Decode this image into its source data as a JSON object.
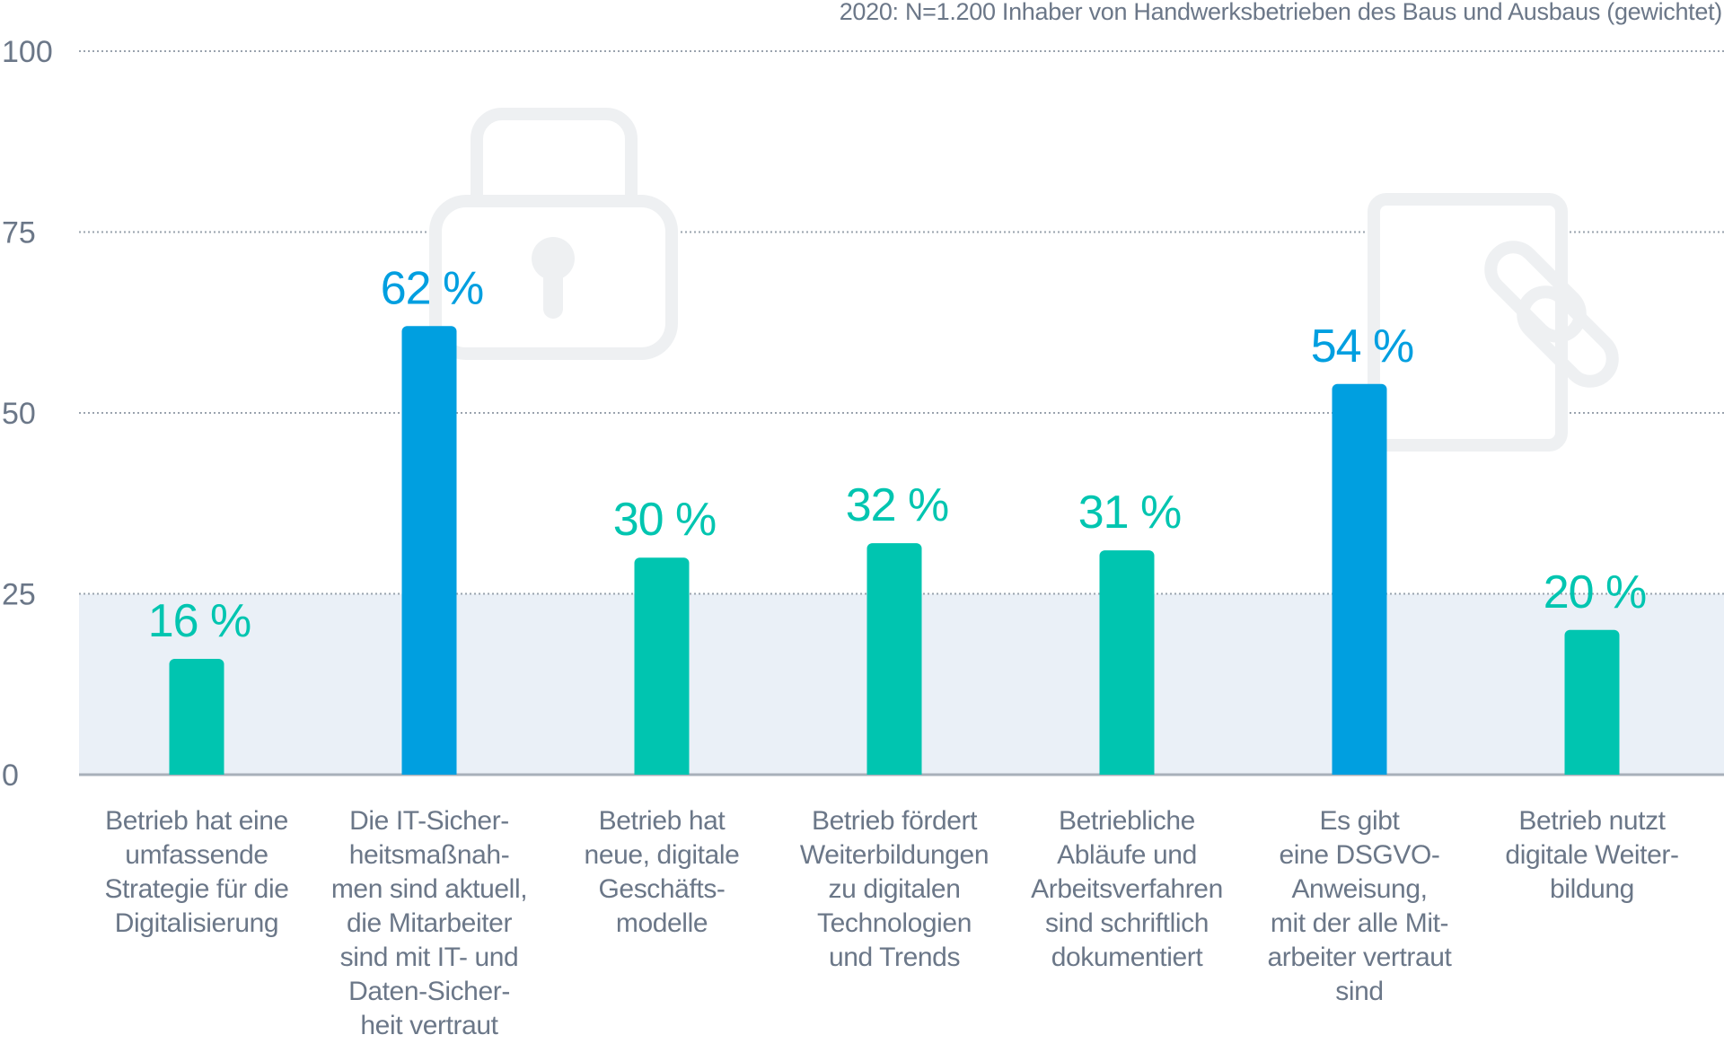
{
  "caption": "2020: N=1.200 Inhaber von Handwerksbetrieben des Baus und Ausbaus (gewichtet)",
  "colors": {
    "teal": "#00c5b0",
    "blue": "#009fe0",
    "band": "#eaf0f7",
    "text": "#6b7788",
    "icon": "#eef0f2"
  },
  "icons": [
    "lock-icon",
    "smartphone-link-icon"
  ],
  "chart_data": {
    "type": "bar",
    "ylim": [
      0,
      100
    ],
    "yticks": [
      0,
      25,
      50,
      75,
      100
    ],
    "grid": true,
    "shaded_band": [
      0,
      25
    ],
    "categories": [
      "Betrieb hat eine umfassende Strategie für die Digitalisierung",
      "Die IT-Sicher-heitsmaßnah-men sind aktuell, die Mitarbeiter sind mit IT- und Daten-Sicher-heit vertraut",
      "Betrieb hat neue, digitale Geschäfts-modelle",
      "Betrieb fördert Weiterbildungen zu digitalen Technologien und Trends",
      "Betriebliche Abläufe und Arbeitsverfahren sind schriftlich dokumentiert",
      "Es gibt eine DSGVO-Anweisung, mit der alle Mit-arbeiter vertraut sind",
      "Betrieb nutzt digitale Weiter-bildung"
    ],
    "category_lines": [
      [
        "Betrieb hat eine",
        "umfassende",
        "Strategie für die",
        "Digitalisierung"
      ],
      [
        "Die IT-Sicher-",
        "heitsmaßnah-",
        "men sind aktuell,",
        "die Mitarbeiter",
        "sind mit IT- und",
        "Daten-Sicher-",
        "heit vertraut"
      ],
      [
        "Betrieb hat",
        "neue, digitale",
        "Geschäfts-",
        "modelle"
      ],
      [
        "Betrieb fördert",
        "Weiterbildungen",
        "zu digitalen",
        "Technologien",
        "und Trends"
      ],
      [
        "Betriebliche",
        "Abläufe und",
        "Arbeitsverfahren",
        "sind schriftlich",
        "dokumentiert"
      ],
      [
        "Es gibt",
        "eine DSGVO-",
        "Anweisung,",
        "mit der alle Mit-",
        "arbeiter vertraut",
        "sind"
      ],
      [
        "Betrieb nutzt",
        "digitale Weiter-",
        "bildung"
      ]
    ],
    "values": [
      16,
      62,
      30,
      32,
      31,
      54,
      20
    ],
    "value_labels": [
      "16 %",
      "62 %",
      "30 %",
      "32 %",
      "31 %",
      "54 %",
      "20 %"
    ],
    "bar_colors": [
      "teal",
      "blue",
      "teal",
      "teal",
      "teal",
      "blue",
      "teal"
    ]
  }
}
